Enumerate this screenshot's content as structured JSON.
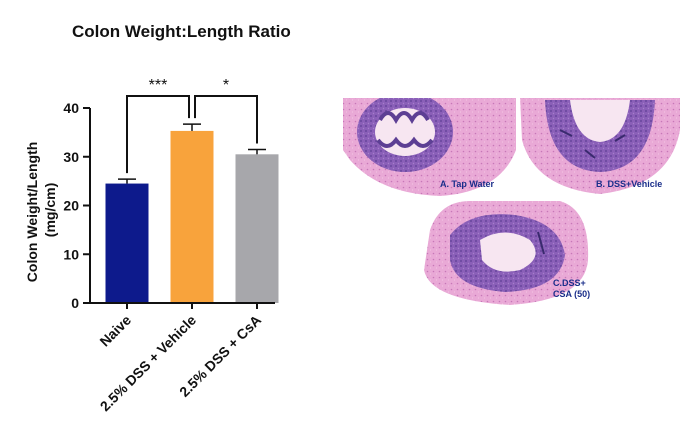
{
  "chart_data": {
    "type": "bar",
    "title": "Colon Weight:Length Ratio",
    "ylabel_line1": "Colon Weight/Length",
    "ylabel_line2": "(mg/cm)",
    "xlabel": "",
    "ylim": [
      0,
      40
    ],
    "yticks": [
      0,
      10,
      20,
      30,
      40
    ],
    "grid": false,
    "categories": [
      "Naive",
      "2.5% DSS + Vehicle",
      "2.5% DSS + CsA"
    ],
    "values": [
      24.5,
      35.3,
      30.5
    ],
    "errors": [
      0.9,
      1.4,
      1.0
    ],
    "colors": [
      "#0d1a8c",
      "#f8a33c",
      "#a7a7ab"
    ],
    "significance": [
      {
        "from": 0,
        "to": 1,
        "label": "***"
      },
      {
        "from": 1,
        "to": 2,
        "label": "*"
      }
    ]
  },
  "histology": {
    "panels": [
      {
        "label_lines": [
          "A. Tap Water"
        ]
      },
      {
        "label_lines": [
          "B. DSS+Vehicle"
        ]
      },
      {
        "label_lines": [
          "C.DSS+",
          "CSA (50)"
        ]
      }
    ]
  }
}
